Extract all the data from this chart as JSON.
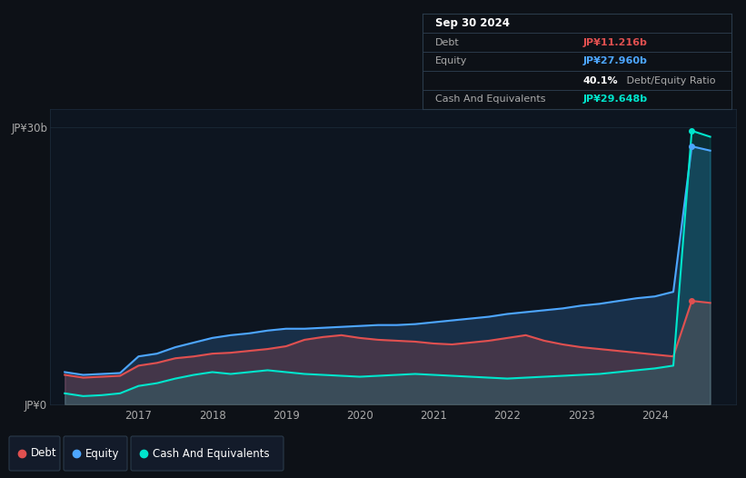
{
  "bg_color": "#0d1117",
  "plot_bg_color": "#0d1520",
  "grid_color": "#1e2d3d",
  "ylabel_30b": "JP¥30b",
  "ylabel_0": "JP¥0",
  "x_ticks": [
    2017,
    2018,
    2019,
    2020,
    2021,
    2022,
    2023,
    2024
  ],
  "debt_color": "#e05050",
  "equity_color": "#4da6ff",
  "cash_color": "#00e5cc",
  "tooltip_bg": "#0d1117",
  "tooltip_border": "#2a3a4a",
  "tooltip_title": "Sep 30 2024",
  "tooltip_debt_label": "Debt",
  "tooltip_debt_val": "JP¥11.216b",
  "tooltip_equity_label": "Equity",
  "tooltip_equity_val": "JP¥27.960b",
  "tooltip_ratio_bold": "40.1%",
  "tooltip_ratio_text": " Debt/Equity Ratio",
  "tooltip_cash_label": "Cash And Equivalents",
  "tooltip_cash_val": "JP¥29.648b",
  "debt_data_x": [
    2016.0,
    2016.25,
    2016.5,
    2016.75,
    2017.0,
    2017.25,
    2017.5,
    2017.75,
    2018.0,
    2018.25,
    2018.5,
    2018.75,
    2019.0,
    2019.25,
    2019.5,
    2019.75,
    2020.0,
    2020.25,
    2020.5,
    2020.75,
    2021.0,
    2021.25,
    2021.5,
    2021.75,
    2022.0,
    2022.25,
    2022.5,
    2022.75,
    2023.0,
    2023.25,
    2023.5,
    2023.75,
    2024.0,
    2024.25,
    2024.5,
    2024.75
  ],
  "debt_data_y": [
    3.2,
    2.9,
    3.0,
    3.1,
    4.2,
    4.5,
    5.0,
    5.2,
    5.5,
    5.6,
    5.8,
    6.0,
    6.3,
    7.0,
    7.3,
    7.5,
    7.2,
    7.0,
    6.9,
    6.8,
    6.6,
    6.5,
    6.7,
    6.9,
    7.2,
    7.5,
    6.9,
    6.5,
    6.2,
    6.0,
    5.8,
    5.6,
    5.4,
    5.2,
    11.216,
    11.0
  ],
  "equity_data_x": [
    2016.0,
    2016.25,
    2016.5,
    2016.75,
    2017.0,
    2017.25,
    2017.5,
    2017.75,
    2018.0,
    2018.25,
    2018.5,
    2018.75,
    2019.0,
    2019.25,
    2019.5,
    2019.75,
    2020.0,
    2020.25,
    2020.5,
    2020.75,
    2021.0,
    2021.25,
    2021.5,
    2021.75,
    2022.0,
    2022.25,
    2022.5,
    2022.75,
    2023.0,
    2023.25,
    2023.5,
    2023.75,
    2024.0,
    2024.25,
    2024.5,
    2024.75
  ],
  "equity_data_y": [
    3.5,
    3.2,
    3.3,
    3.4,
    5.2,
    5.5,
    6.2,
    6.7,
    7.2,
    7.5,
    7.7,
    8.0,
    8.2,
    8.2,
    8.3,
    8.4,
    8.5,
    8.6,
    8.6,
    8.7,
    8.9,
    9.1,
    9.3,
    9.5,
    9.8,
    10.0,
    10.2,
    10.4,
    10.7,
    10.9,
    11.2,
    11.5,
    11.7,
    12.2,
    27.96,
    27.5
  ],
  "cash_data_x": [
    2016.0,
    2016.25,
    2016.5,
    2016.75,
    2017.0,
    2017.25,
    2017.5,
    2017.75,
    2018.0,
    2018.25,
    2018.5,
    2018.75,
    2019.0,
    2019.25,
    2019.5,
    2019.75,
    2020.0,
    2020.25,
    2020.5,
    2020.75,
    2021.0,
    2021.25,
    2021.5,
    2021.75,
    2022.0,
    2022.25,
    2022.5,
    2022.75,
    2023.0,
    2023.25,
    2023.5,
    2023.75,
    2024.0,
    2024.25,
    2024.5,
    2024.75
  ],
  "cash_data_y": [
    1.2,
    0.9,
    1.0,
    1.2,
    2.0,
    2.3,
    2.8,
    3.2,
    3.5,
    3.3,
    3.5,
    3.7,
    3.5,
    3.3,
    3.2,
    3.1,
    3.0,
    3.1,
    3.2,
    3.3,
    3.2,
    3.1,
    3.0,
    2.9,
    2.8,
    2.9,
    3.0,
    3.1,
    3.2,
    3.3,
    3.5,
    3.7,
    3.9,
    4.2,
    29.648,
    29.0
  ],
  "ylim": [
    0,
    32
  ],
  "xlim": [
    2015.8,
    2025.1
  ],
  "fill_equity_alpha": 0.18,
  "fill_debt_alpha": 0.22,
  "fill_cash_alpha": 0.13
}
